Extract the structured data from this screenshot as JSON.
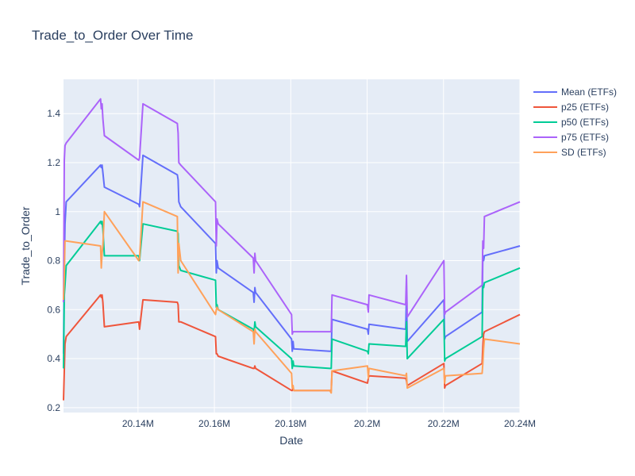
{
  "chart_data": {
    "type": "line",
    "title": "Trade_to_Order Over Time",
    "xlabel": "Date",
    "ylabel": "Trade_to_Order",
    "xlim": [
      20120500,
      20240000
    ],
    "ylim": [
      0.18,
      1.54
    ],
    "x_ticks": [
      {
        "value": 20140000,
        "label": "20.14M"
      },
      {
        "value": 20160000,
        "label": "20.16M"
      },
      {
        "value": 20180000,
        "label": "20.18M"
      },
      {
        "value": 20200000,
        "label": "20.2M"
      },
      {
        "value": 20220000,
        "label": "20.22M"
      },
      {
        "value": 20240000,
        "label": "20.24M"
      }
    ],
    "y_ticks": [
      {
        "value": 0.2,
        "label": "0.2"
      },
      {
        "value": 0.4,
        "label": "0.4"
      },
      {
        "value": 0.6,
        "label": "0.6"
      },
      {
        "value": 0.8,
        "label": "0.8"
      },
      {
        "value": 1.0,
        "label": "1"
      },
      {
        "value": 1.2,
        "label": "1.2"
      },
      {
        "value": 1.4,
        "label": "1.4"
      }
    ],
    "grid": true,
    "legend_position": "top-right",
    "series": [
      {
        "name": "Mean (ETFs)",
        "color": "#636efa",
        "x": [
          20120500,
          20120700,
          20120900,
          20121200,
          20130200,
          20130400,
          20130600,
          20130800,
          20131200,
          20140200,
          20140400,
          20141300,
          20150300,
          20150500,
          20150700,
          20151200,
          20160300,
          20160500,
          20160700,
          20161000,
          20170200,
          20170400,
          20170600,
          20170800,
          20180200,
          20180400,
          20180600,
          20180800,
          20190200,
          20190600,
          20190800,
          20200100,
          20200300,
          20200500,
          20210100,
          20210300,
          20210500,
          20220100,
          20220300,
          20220500,
          20230100,
          20230300,
          20230500,
          20230700,
          20240000
        ],
        "y": [
          0.42,
          0.78,
          0.95,
          1.04,
          1.19,
          1.18,
          1.19,
          1.16,
          1.1,
          1.03,
          1.02,
          1.23,
          1.15,
          1.13,
          1.04,
          1.02,
          0.87,
          0.75,
          0.8,
          0.77,
          0.67,
          0.63,
          0.69,
          0.67,
          0.48,
          0.43,
          0.47,
          0.44,
          0.43,
          0.43,
          0.56,
          0.52,
          0.5,
          0.54,
          0.52,
          0.66,
          0.47,
          0.64,
          0.48,
          0.49,
          0.59,
          0.82,
          0.8,
          0.82,
          0.86
        ]
      },
      {
        "name": "p25 (ETFs)",
        "color": "#ef553b",
        "x": [
          20120500,
          20120700,
          20120900,
          20121200,
          20130200,
          20130400,
          20130600,
          20130800,
          20131200,
          20140200,
          20140400,
          20141300,
          20150300,
          20150500,
          20150700,
          20151200,
          20160300,
          20160500,
          20160700,
          20161000,
          20170200,
          20170400,
          20170600,
          20170800,
          20180200,
          20180400,
          20180600,
          20180800,
          20190200,
          20190600,
          20190800,
          20200100,
          20200300,
          20200500,
          20210100,
          20210300,
          20210500,
          20220100,
          20220300,
          20220500,
          20230100,
          20230300,
          20230500,
          20230700,
          20240000
        ],
        "y": [
          0.23,
          0.35,
          0.46,
          0.49,
          0.66,
          0.65,
          0.66,
          0.63,
          0.53,
          0.55,
          0.52,
          0.64,
          0.63,
          0.62,
          0.55,
          0.55,
          0.49,
          0.42,
          0.42,
          0.41,
          0.36,
          0.36,
          0.37,
          0.36,
          0.27,
          0.27,
          0.28,
          0.27,
          0.27,
          0.27,
          0.35,
          0.3,
          0.32,
          0.33,
          0.32,
          0.31,
          0.29,
          0.38,
          0.28,
          0.29,
          0.38,
          0.45,
          0.5,
          0.51,
          0.58
        ]
      },
      {
        "name": "p50 (ETFs)",
        "color": "#00cc96",
        "x": [
          20120500,
          20120700,
          20120900,
          20121200,
          20130200,
          20130400,
          20130600,
          20130800,
          20131200,
          20140200,
          20140400,
          20141300,
          20150300,
          20150500,
          20150700,
          20151200,
          20160300,
          20160500,
          20160700,
          20161000,
          20170200,
          20170400,
          20170600,
          20170800,
          20180200,
          20180400,
          20180600,
          20180800,
          20190200,
          20190600,
          20190800,
          20200100,
          20200300,
          20200500,
          20210100,
          20210300,
          20210500,
          20220100,
          20220300,
          20220500,
          20230100,
          20230300,
          20230500,
          20230700,
          20240000
        ],
        "y": [
          0.36,
          0.66,
          0.7,
          0.78,
          0.96,
          0.95,
          0.96,
          0.93,
          0.82,
          0.82,
          0.8,
          0.95,
          0.92,
          0.91,
          0.78,
          0.76,
          0.72,
          0.61,
          0.62,
          0.6,
          0.52,
          0.51,
          0.55,
          0.53,
          0.4,
          0.36,
          0.39,
          0.37,
          0.36,
          0.36,
          0.48,
          0.43,
          0.42,
          0.46,
          0.45,
          0.55,
          0.4,
          0.56,
          0.39,
          0.4,
          0.49,
          0.7,
          0.69,
          0.71,
          0.77
        ]
      },
      {
        "name": "p75 (ETFs)",
        "color": "#ab63fa",
        "x": [
          20120500,
          20120700,
          20120900,
          20121200,
          20130200,
          20130400,
          20130600,
          20130800,
          20131200,
          20140200,
          20140400,
          20141300,
          20150300,
          20150500,
          20150700,
          20151200,
          20160300,
          20160500,
          20160700,
          20161000,
          20170200,
          20170400,
          20170600,
          20170800,
          20180200,
          20180400,
          20180600,
          20180800,
          20190200,
          20190600,
          20190800,
          20200100,
          20200300,
          20200500,
          20210100,
          20210300,
          20210500,
          20220100,
          20220300,
          20220500,
          20230100,
          20230300,
          20230500,
          20230700,
          20240000
        ],
        "y": [
          0.63,
          1.21,
          1.27,
          1.28,
          1.46,
          1.42,
          1.44,
          1.38,
          1.31,
          1.21,
          1.22,
          1.44,
          1.36,
          1.32,
          1.2,
          1.19,
          1.04,
          0.86,
          0.97,
          0.95,
          0.81,
          0.75,
          0.83,
          0.8,
          0.58,
          0.5,
          0.51,
          0.51,
          0.51,
          0.51,
          0.66,
          0.62,
          0.59,
          0.66,
          0.62,
          0.74,
          0.57,
          0.8,
          0.58,
          0.59,
          0.7,
          0.88,
          0.85,
          0.98,
          1.04
        ]
      },
      {
        "name": "SD (ETFs)",
        "color": "#ffa15a",
        "x": [
          20120500,
          20120700,
          20120900,
          20121200,
          20130200,
          20130400,
          20130600,
          20130800,
          20131200,
          20140200,
          20140400,
          20141300,
          20150300,
          20150500,
          20150700,
          20151200,
          20160300,
          20160500,
          20160700,
          20161000,
          20170200,
          20170400,
          20170600,
          20170800,
          20180200,
          20180400,
          20180600,
          20180800,
          20190200,
          20190600,
          20190800,
          20200100,
          20200300,
          20200500,
          20210100,
          20210300,
          20210500,
          20220100,
          20220300,
          20220500,
          20230100,
          20230300,
          20230500,
          20230700,
          20240000
        ],
        "y": [
          0.64,
          0.74,
          0.88,
          0.88,
          0.86,
          0.77,
          0.83,
          0.86,
          1.0,
          0.8,
          0.81,
          1.04,
          0.98,
          0.75,
          0.87,
          0.8,
          0.58,
          0.6,
          0.61,
          0.6,
          0.51,
          0.46,
          0.52,
          0.51,
          0.34,
          0.28,
          0.29,
          0.27,
          0.27,
          0.26,
          0.35,
          0.37,
          0.32,
          0.36,
          0.33,
          0.34,
          0.28,
          0.36,
          0.3,
          0.33,
          0.34,
          0.38,
          0.44,
          0.48,
          0.46
        ]
      }
    ]
  }
}
